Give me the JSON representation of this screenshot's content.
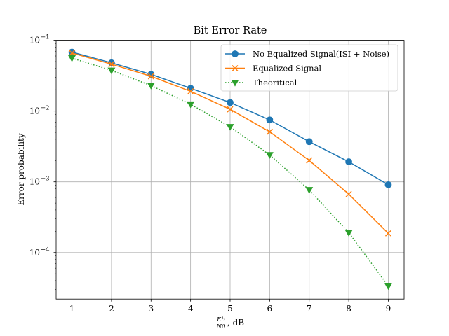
{
  "chart_data": {
    "type": "line",
    "title": "Bit Error Rate",
    "xlabel_frac_num": "Eb",
    "xlabel_frac_den": "N0",
    "xlabel_unit": ", dB",
    "ylabel": "Error probability",
    "x": [
      1,
      2,
      3,
      4,
      5,
      6,
      7,
      8,
      9
    ],
    "xticks": [
      "1",
      "2",
      "3",
      "4",
      "5",
      "6",
      "7",
      "8",
      "9"
    ],
    "xlim": [
      0.6,
      9.4
    ],
    "yscale": "log",
    "ylim": [
      2.2e-05,
      0.1
    ],
    "yticks": [
      {
        "value": 0.1,
        "base": "10",
        "exp": "−1"
      },
      {
        "value": 0.01,
        "base": "10",
        "exp": "−2"
      },
      {
        "value": 0.001,
        "base": "10",
        "exp": "−3"
      },
      {
        "value": 0.0001,
        "base": "10",
        "exp": "−4"
      }
    ],
    "grid": true,
    "legend": "top-right",
    "series": [
      {
        "name": "No Equalized Signal(ISI + Noise)",
        "color": "#1f77b4",
        "marker": "circle",
        "style": "solid",
        "values": [
          0.068,
          0.048,
          0.033,
          0.021,
          0.0132,
          0.0075,
          0.0037,
          0.00192,
          0.00091
        ]
      },
      {
        "name": "Equalized Signal",
        "color": "#ff7f0e",
        "marker": "x",
        "style": "solid",
        "values": [
          0.066,
          0.046,
          0.031,
          0.019,
          0.0106,
          0.0051,
          0.00201,
          0.00067,
          0.000187
        ]
      },
      {
        "name": "Theoritical",
        "color": "#2ca02c",
        "marker": "triangle-down",
        "style": "dotted",
        "values": [
          0.056,
          0.0375,
          0.0229,
          0.0125,
          0.006,
          0.0024,
          0.00077,
          0.000191,
          3.36e-05
        ]
      }
    ]
  }
}
